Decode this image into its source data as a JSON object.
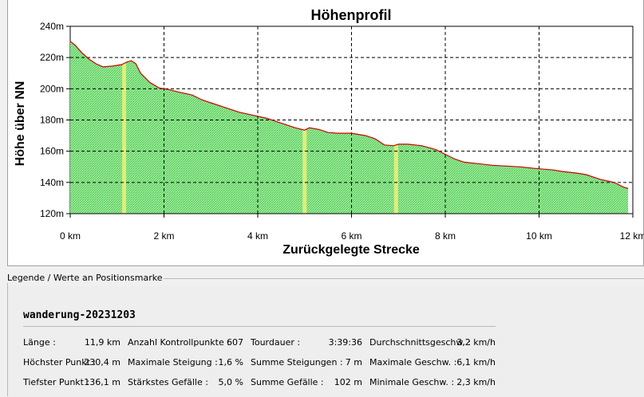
{
  "chart_data": {
    "type": "area",
    "title": "Höhenprofil",
    "xlabel": "Zurückgelegte Strecke",
    "ylabel": "Höhe über NN",
    "xlim": [
      0,
      12
    ],
    "ylim": [
      120,
      240
    ],
    "x_ticks": [
      0,
      2,
      4,
      6,
      8,
      10,
      12
    ],
    "x_tick_labels": [
      "0 km",
      "2 km",
      "4 km",
      "6 km",
      "8 km",
      "10 km",
      "12 km"
    ],
    "y_ticks": [
      120,
      140,
      160,
      180,
      200,
      220,
      240
    ],
    "y_tick_labels": [
      "120m",
      "140m",
      "160m",
      "180m",
      "200m",
      "220m",
      "240m"
    ],
    "grid": true,
    "fill_color": "#7fe07f",
    "line_color": "#cc0000",
    "highlight_color": "#f0f07a",
    "highlights_km": [
      1.15,
      5.0,
      6.95
    ],
    "x": [
      0,
      0.1,
      0.25,
      0.4,
      0.55,
      0.7,
      0.9,
      1.1,
      1.2,
      1.3,
      1.4,
      1.5,
      1.7,
      1.9,
      2.1,
      2.3,
      2.6,
      2.8,
      3.0,
      3.3,
      3.6,
      3.9,
      4.2,
      4.5,
      4.8,
      5.0,
      5.1,
      5.3,
      5.5,
      5.7,
      6.0,
      6.3,
      6.5,
      6.7,
      6.9,
      7.0,
      7.2,
      7.5,
      7.8,
      8.0,
      8.2,
      8.4,
      8.7,
      9.0,
      9.3,
      9.6,
      9.9,
      10.1,
      10.3,
      10.5,
      10.8,
      11.0,
      11.3,
      11.6,
      11.8,
      11.9
    ],
    "y": [
      230.4,
      228,
      223,
      219,
      216,
      214,
      214.5,
      215.5,
      217,
      218,
      216,
      210,
      204,
      200.5,
      199.5,
      198,
      196,
      193,
      191,
      188,
      185,
      183,
      181,
      178,
      175,
      173.5,
      175,
      174,
      172,
      171.5,
      171.5,
      170,
      168,
      164,
      163.5,
      164.5,
      164.5,
      163.5,
      161,
      158,
      155,
      153,
      152,
      151,
      150.5,
      150,
      149,
      148.5,
      148,
      147,
      146,
      145,
      142,
      140,
      137,
      136.1
    ]
  },
  "legend": {
    "title": "Legende / Werte an Positionsmarke",
    "track_name": "wanderung-20231203",
    "stats": [
      [
        {
          "label": "Länge :",
          "value": "11,9 km"
        },
        {
          "label": "Höchster Punkt :",
          "value": "230,4 m"
        },
        {
          "label": "Tiefster Punkt :",
          "value": "136,1 m"
        }
      ],
      [
        {
          "label": "Anzahl Kontrollpunkte :",
          "value": "607"
        },
        {
          "label": "Maximale Steigung :",
          "value": "1,6 %"
        },
        {
          "label": "Stärkstes Gefälle :",
          "value": "5,0 %"
        }
      ],
      [
        {
          "label": "Tourdauer :",
          "value": "3:39:36"
        },
        {
          "label": "Summe Steigungen :",
          "value": "7 m"
        },
        {
          "label": "Summe Gefälle :",
          "value": "102 m"
        }
      ],
      [
        {
          "label": "Durchschnittsgeschw. :",
          "value": "3,2 km/h"
        },
        {
          "label": "Maximale Geschw. :",
          "value": "6,1 km/h"
        },
        {
          "label": "Minimale Geschw. :",
          "value": "2,3 km/h"
        }
      ]
    ]
  }
}
